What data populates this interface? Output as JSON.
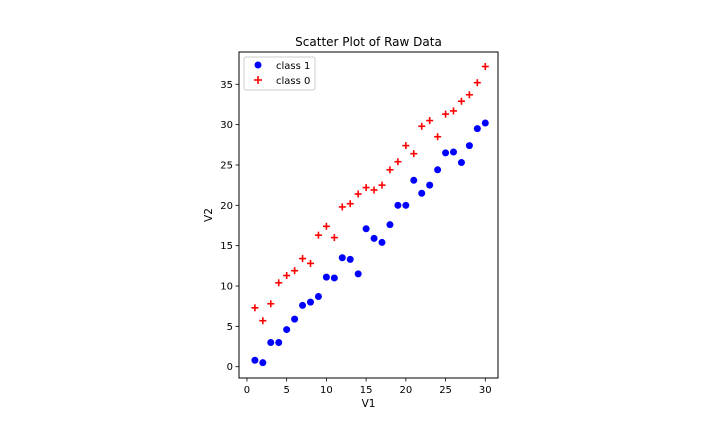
{
  "chart_data": {
    "type": "scatter",
    "title": "Scatter Plot of Raw Data",
    "xlabel": "V1",
    "ylabel": "V2",
    "xlim": [
      -1,
      31.6
    ],
    "ylim": [
      -1.4,
      39
    ],
    "xticks": [
      0,
      5,
      10,
      15,
      20,
      25,
      30
    ],
    "yticks": [
      0,
      5,
      10,
      15,
      20,
      25,
      30,
      35
    ],
    "grid": false,
    "legend_position": "top-left",
    "series": [
      {
        "name": "class 1",
        "marker": "circle",
        "color": "#0000ff",
        "x": [
          1,
          2,
          3,
          4,
          5,
          6,
          7,
          8,
          9,
          10,
          11,
          12,
          13,
          14,
          15,
          16,
          17,
          18,
          19,
          20,
          21,
          22,
          23,
          24,
          25,
          26,
          27,
          28,
          29,
          30
        ],
        "y": [
          0.8,
          0.5,
          3.0,
          3.0,
          4.6,
          5.9,
          7.6,
          8.0,
          8.7,
          11.1,
          11.0,
          13.5,
          13.3,
          11.5,
          17.1,
          15.9,
          15.4,
          17.6,
          20.0,
          20.0,
          23.1,
          21.5,
          22.5,
          24.4,
          26.5,
          26.6,
          25.3,
          27.4,
          29.5,
          30.2
        ]
      },
      {
        "name": "class 0",
        "marker": "plus",
        "color": "#ff0000",
        "x": [
          1,
          2,
          3,
          4,
          5,
          6,
          7,
          8,
          9,
          10,
          11,
          12,
          13,
          14,
          15,
          16,
          17,
          18,
          19,
          20,
          21,
          22,
          23,
          24,
          25,
          26,
          27,
          28,
          29,
          30
        ],
        "y": [
          7.3,
          5.7,
          7.8,
          10.4,
          11.3,
          11.9,
          13.4,
          12.8,
          16.3,
          17.4,
          16.0,
          19.8,
          20.2,
          21.4,
          22.2,
          21.9,
          22.5,
          24.4,
          25.4,
          27.4,
          26.4,
          29.8,
          30.5,
          28.5,
          31.3,
          31.7,
          32.9,
          33.7,
          35.2,
          37.2
        ]
      }
    ]
  }
}
